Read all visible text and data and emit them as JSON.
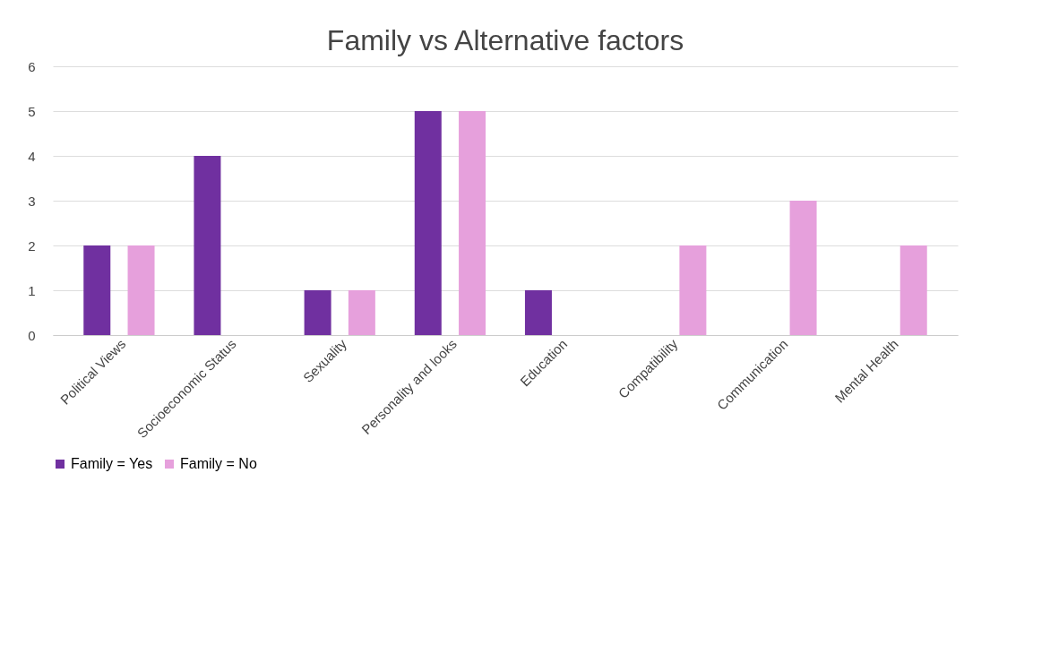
{
  "chart_data": {
    "type": "bar",
    "title": "Family vs Alternative factors",
    "categories": [
      "Political Views",
      "Socioeconomic Status",
      "Sexuality",
      "Personality and looks",
      "Education",
      "Compatibility",
      "Communication",
      "Mental Health"
    ],
    "series": [
      {
        "name": "Family = Yes",
        "color": "#7030a0",
        "values": [
          2,
          4,
          1,
          5,
          1,
          0,
          0,
          0
        ]
      },
      {
        "name": "Family = No",
        "color": "#e6a0dc",
        "values": [
          2,
          0,
          1,
          5,
          0,
          2,
          3,
          2
        ]
      }
    ],
    "ylim": [
      0,
      6
    ],
    "yticks": [
      0,
      1,
      2,
      3,
      4,
      5,
      6
    ],
    "grid": "y",
    "legend": "bottom"
  }
}
